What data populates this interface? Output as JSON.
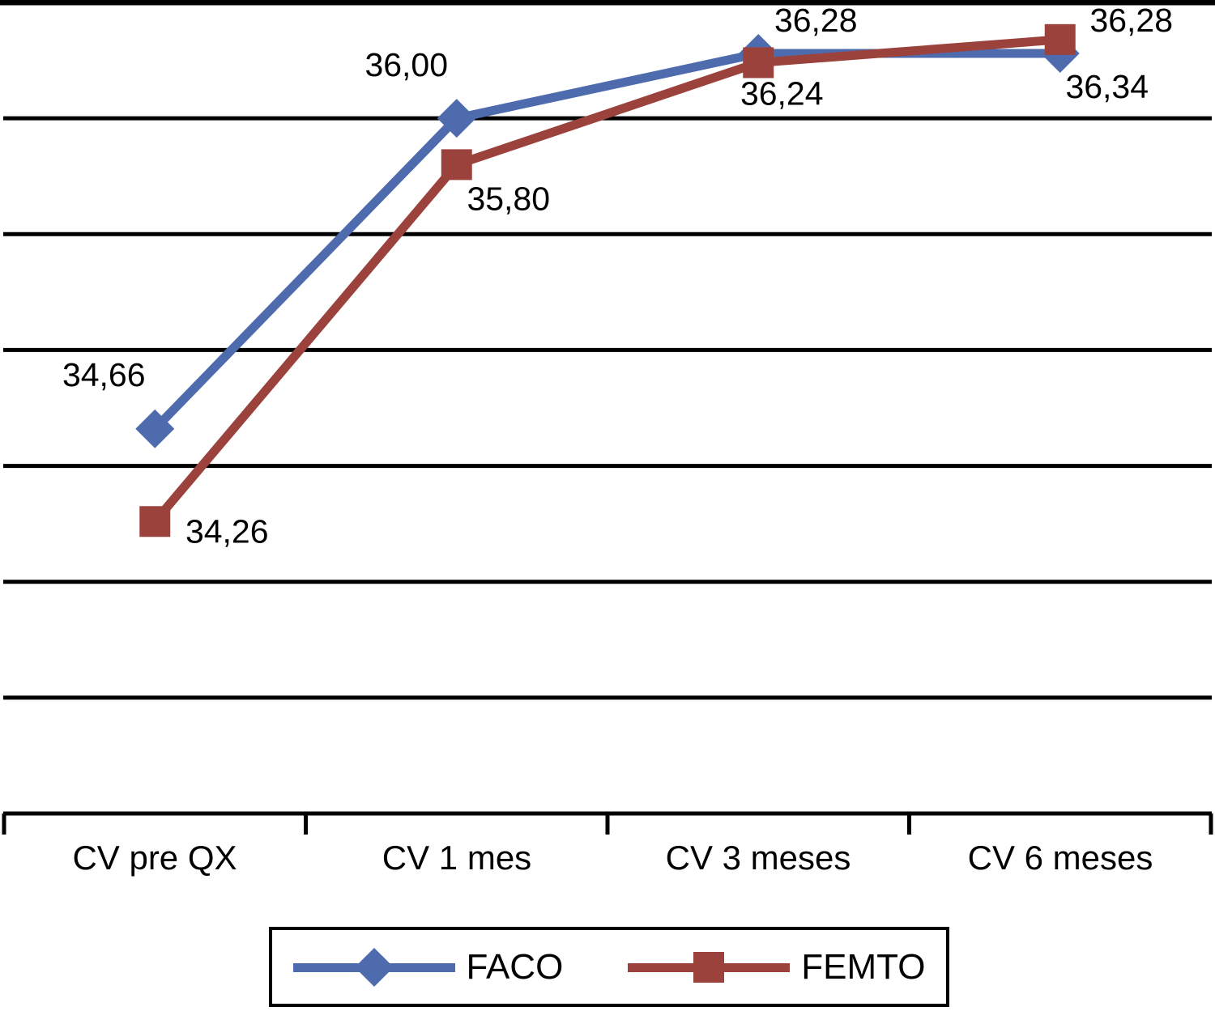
{
  "chart_data": {
    "type": "line",
    "categories": [
      "CV pre QX",
      "CV 1 mes",
      "CV 3 meses",
      "CV 6 meses"
    ],
    "series": [
      {
        "name": "FACO",
        "color": "#4E6BAE",
        "marker": "diamond",
        "values": [
          34.66,
          36.0,
          36.28,
          36.28
        ],
        "labels": [
          "34,66",
          "36,00",
          "36,28",
          "36,28"
        ],
        "label_offsets": [
          [
            -63,
            -53
          ],
          [
            -62,
            -52
          ],
          [
            71,
            -27
          ],
          [
            88,
            -27
          ]
        ]
      },
      {
        "name": "FEMTO",
        "color": "#9C423D",
        "marker": "square",
        "values": [
          34.26,
          35.8,
          36.24,
          36.34
        ],
        "labels": [
          "34,26",
          "35,80",
          "36,24",
          "36,34"
        ],
        "label_offsets": [
          [
            89,
            26
          ],
          [
            64,
            56
          ],
          [
            29,
            52
          ],
          [
            58,
            72
          ]
        ]
      }
    ],
    "title": "",
    "xlabel": "",
    "ylabel": "",
    "ylim": [
      33.0,
      36.5
    ],
    "gridline_step": 0.5,
    "grid": "horizontal-only",
    "y_tick_labels_visible": false,
    "data_labels_visible": true,
    "legend_position": "bottom",
    "axis_color": "#000000",
    "background_color": "#ffffff"
  }
}
